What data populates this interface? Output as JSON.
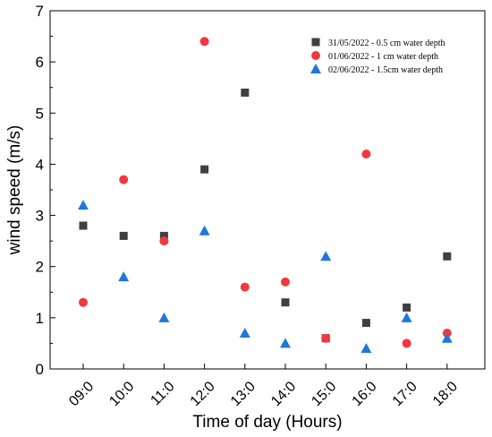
{
  "chart_data": {
    "type": "scatter",
    "title": "",
    "xlabel": "Time of day (Hours)",
    "ylabel": "wind speed (m/s)",
    "categories": [
      "09:0",
      "10:0",
      "11:0",
      "12:0",
      "13:0",
      "14:0",
      "15:0",
      "16:0",
      "17:0",
      "18:0"
    ],
    "ylim": [
      0,
      7
    ],
    "yticks": [
      "0",
      "1",
      "2",
      "3",
      "4",
      "5",
      "6",
      "7"
    ],
    "grid": false,
    "legend_position": "top-right",
    "series": [
      {
        "name": "31/05/2022 - 0.5 cm water depth",
        "marker": "square",
        "color": "#404040",
        "values": [
          2.8,
          2.6,
          2.6,
          3.9,
          5.4,
          1.3,
          0.6,
          0.9,
          1.2,
          2.2
        ]
      },
      {
        "name": "01/06/2022 - 1 cm water depth",
        "marker": "circle",
        "color": "#f0393f",
        "values": [
          1.3,
          3.7,
          2.5,
          6.4,
          1.6,
          1.7,
          0.6,
          4.2,
          0.5,
          0.7
        ]
      },
      {
        "name": "02/06/2022 - 1.5cm water depth",
        "marker": "triangle",
        "color": "#1f77d8",
        "values": [
          3.2,
          1.8,
          1.0,
          2.7,
          0.7,
          0.5,
          2.2,
          0.4,
          1.0,
          0.6
        ]
      }
    ]
  }
}
